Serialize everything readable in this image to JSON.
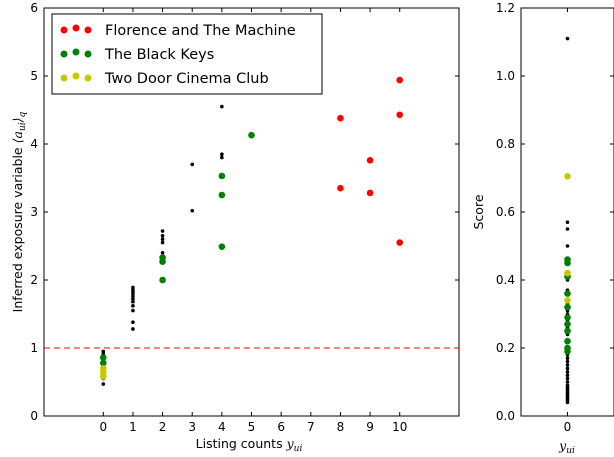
{
  "chart_data": [
    {
      "type": "scatter",
      "panel": "main",
      "xlabel": "Listing counts",
      "xlabel_var": "y",
      "xlabel_sub": "ui",
      "ylabel": "Inferred exposure variable",
      "ylabel_math": "⟨a",
      "ylabel_math_sub": "ui",
      "ylabel_math_close": "⟩",
      "ylabel_math_q": "q",
      "xticks": [
        0,
        1,
        2,
        3,
        4,
        5,
        6,
        7,
        8,
        9,
        10
      ],
      "yticks": [
        0,
        1,
        2,
        3,
        4,
        5,
        6
      ],
      "xlim": [
        -2,
        12
      ],
      "ylim": [
        0,
        6
      ],
      "reference_line": {
        "y": 1,
        "style": "dashed",
        "color": "#ff0000"
      },
      "legend": {
        "placement": "top-left",
        "entries": [
          {
            "label": "Florence and The Machine",
            "color": "#ff0000"
          },
          {
            "label": "The Black Keys",
            "color": "#008000"
          },
          {
            "label": "Two Door Cinema Club",
            "color": "#c8c800"
          }
        ]
      },
      "series": [
        {
          "color": "#000000",
          "marker": "small",
          "points": [
            [
              0,
              0.47
            ],
            [
              0,
              0.55
            ],
            [
              0,
              0.6
            ],
            [
              0,
              0.64
            ],
            [
              0,
              0.68
            ],
            [
              0,
              0.7
            ],
            [
              0,
              0.72
            ],
            [
              0,
              0.74
            ],
            [
              0,
              0.76
            ],
            [
              0,
              0.78
            ],
            [
              0,
              0.8
            ],
            [
              0,
              0.82
            ],
            [
              0,
              0.84
            ],
            [
              0,
              0.86
            ],
            [
              0,
              0.88
            ],
            [
              0,
              0.9
            ],
            [
              0,
              0.92
            ],
            [
              0,
              0.95
            ],
            [
              1,
              1.28
            ],
            [
              1,
              1.38
            ],
            [
              1,
              1.55
            ],
            [
              1,
              1.62
            ],
            [
              1,
              1.68
            ],
            [
              1,
              1.72
            ],
            [
              1,
              1.76
            ],
            [
              1,
              1.8
            ],
            [
              1,
              1.83
            ],
            [
              1,
              1.86
            ],
            [
              1,
              1.89
            ],
            [
              2,
              2.35
            ],
            [
              2,
              2.4
            ],
            [
              2,
              2.55
            ],
            [
              2,
              2.6
            ],
            [
              2,
              2.65
            ],
            [
              2,
              2.72
            ],
            [
              3,
              3.02
            ],
            [
              3,
              3.7
            ],
            [
              4,
              3.8
            ],
            [
              4,
              3.85
            ],
            [
              4,
              4.55
            ]
          ]
        },
        {
          "name": "Florence and The Machine",
          "color": "#ff0000",
          "marker": "large",
          "points": [
            [
              8,
              4.38
            ],
            [
              8,
              3.35
            ],
            [
              9,
              3.76
            ],
            [
              9,
              3.28
            ],
            [
              10,
              4.94
            ],
            [
              10,
              4.43
            ],
            [
              10,
              2.55
            ]
          ]
        },
        {
          "name": "The Black Keys",
          "color": "#008000",
          "marker": "large",
          "points": [
            [
              0,
              0.78
            ],
            [
              0,
              0.86
            ],
            [
              2,
              2.0
            ],
            [
              2,
              2.27
            ],
            [
              2,
              2.33
            ],
            [
              4,
              2.49
            ],
            [
              4,
              3.25
            ],
            [
              4,
              3.53
            ],
            [
              5,
              4.13
            ]
          ]
        },
        {
          "name": "Two Door Cinema Club",
          "color": "#c8c800",
          "marker": "large",
          "points": [
            [
              0,
              0.58
            ],
            [
              0,
              0.64
            ],
            [
              0,
              0.7
            ]
          ]
        }
      ]
    },
    {
      "type": "scatter",
      "panel": "side",
      "ylabel": "Score",
      "xlabel_var": "y",
      "xlabel_sub": "ui",
      "xticks": [
        0
      ],
      "yticks": [
        0.0,
        0.2,
        0.4,
        0.6,
        0.8,
        1.0,
        1.2
      ],
      "ytick_labels": [
        "0.0",
        "0.2",
        "0.4",
        "0.6",
        "0.8",
        "1.0",
        "1.2"
      ],
      "ylim": [
        0,
        1.2
      ],
      "series": [
        {
          "color": "#000000",
          "marker": "small",
          "points": [
            [
              0,
              1.11
            ],
            [
              0,
              0.57
            ],
            [
              0,
              0.55
            ],
            [
              0,
              0.5
            ],
            [
              0,
              0.45
            ],
            [
              0,
              0.4
            ],
            [
              0,
              0.37
            ],
            [
              0,
              0.33
            ],
            [
              0,
              0.31
            ],
            [
              0,
              0.3
            ],
            [
              0,
              0.28
            ],
            [
              0,
              0.26
            ],
            [
              0,
              0.24
            ],
            [
              0,
              0.22
            ],
            [
              0,
              0.2
            ],
            [
              0,
              0.18
            ],
            [
              0,
              0.17
            ],
            [
              0,
              0.16
            ],
            [
              0,
              0.15
            ],
            [
              0,
              0.14
            ],
            [
              0,
              0.13
            ],
            [
              0,
              0.12
            ],
            [
              0,
              0.11
            ],
            [
              0,
              0.1
            ],
            [
              0,
              0.09
            ],
            [
              0,
              0.085
            ],
            [
              0,
              0.08
            ],
            [
              0,
              0.075
            ],
            [
              0,
              0.07
            ],
            [
              0,
              0.065
            ],
            [
              0,
              0.06
            ],
            [
              0,
              0.055
            ],
            [
              0,
              0.05
            ],
            [
              0,
              0.045
            ],
            [
              0,
              0.04
            ]
          ]
        },
        {
          "name": "Florence and The Machine",
          "color": "#ff0000",
          "marker": "large",
          "points": []
        },
        {
          "name": "The Black Keys",
          "color": "#008000",
          "marker": "large",
          "points": [
            [
              0,
              0.46
            ],
            [
              0,
              0.45
            ],
            [
              0,
              0.41
            ],
            [
              0,
              0.36
            ],
            [
              0,
              0.32
            ],
            [
              0,
              0.29
            ],
            [
              0,
              0.27
            ],
            [
              0,
              0.25
            ],
            [
              0,
              0.22
            ],
            [
              0,
              0.2
            ],
            [
              0,
              0.19
            ]
          ]
        },
        {
          "name": "Two Door Cinema Club",
          "color": "#c8c800",
          "marker": "large",
          "points": [
            [
              0,
              0.705
            ],
            [
              0,
              0.42
            ],
            [
              0,
              0.34
            ]
          ]
        }
      ]
    }
  ]
}
